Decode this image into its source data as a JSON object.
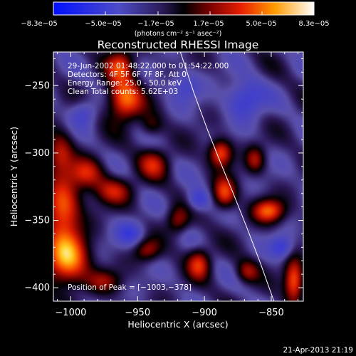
{
  "chart_data": {
    "type": "heatmap",
    "title": "Reconstructed RHESSI Image",
    "xlabel": "Heliocentric X (arcsec)",
    "ylabel": "Heliocentric Y (arcsec)",
    "xlim": [
      -1013,
      -826
    ],
    "ylim": [
      -410,
      -225
    ],
    "x_ticks": [
      -1000,
      -950,
      -900,
      -850
    ],
    "x_tick_labels": [
      "−1000",
      "−950",
      "−900",
      "−850"
    ],
    "y_ticks": [
      -250,
      -300,
      -350,
      -400
    ],
    "y_tick_labels": [
      "−250",
      "−300",
      "−350",
      "−400"
    ],
    "colorbar": {
      "min": -8.3e-05,
      "max": 8.3e-05,
      "tick_labels": [
        "−8.3e−05",
        "−5.0e−05",
        "−1.7e−05",
        "1.7e−05",
        "5.0e−05",
        "8.3e−05"
      ],
      "unit_label": "(photons cm⁻² s⁻¹ asec⁻²)"
    },
    "annotations": [
      "29-Jun-2002 01:48:22.000 to 01:54:22.000",
      "Detectors: 4F 5F 6F 7F 8F, Att 0",
      "Energy Range: 25.0 - 50.0 keV",
      "Clean    Total counts: 5.62E+03"
    ],
    "peak_label": "Position of Peak = [−1003,−378]",
    "peak_position": [
      -1003,
      -378
    ],
    "limb_curve": {
      "x": [
        -918,
        -908,
        -898,
        -888,
        -878,
        -868,
        -858,
        -848
      ],
      "y": [
        -225,
        -255,
        -282,
        -307,
        -331,
        -356,
        -382,
        -410
      ]
    },
    "sources": [
      {
        "x": -1003,
        "y": -378,
        "amp": 1.0,
        "sx": 11,
        "sy": 14
      },
      {
        "x": -1006,
        "y": -340,
        "amp": 0.8,
        "sx": 9,
        "sy": 14
      },
      {
        "x": -1008,
        "y": -300,
        "amp": 0.55,
        "sx": 7,
        "sy": 11
      },
      {
        "x": -988,
        "y": -315,
        "amp": 0.55,
        "sx": 9,
        "sy": 8
      },
      {
        "x": -960,
        "y": -260,
        "amp": 0.85,
        "sx": 9,
        "sy": 11
      },
      {
        "x": -963,
        "y": -235,
        "amp": 0.6,
        "sx": 7,
        "sy": 8
      },
      {
        "x": -968,
        "y": -328,
        "amp": 0.5,
        "sx": 10,
        "sy": 7
      },
      {
        "x": -938,
        "y": -308,
        "amp": 0.5,
        "sx": 8,
        "sy": 8
      },
      {
        "x": -920,
        "y": -350,
        "amp": 0.45,
        "sx": 6,
        "sy": 7
      },
      {
        "x": -904,
        "y": -382,
        "amp": 0.6,
        "sx": 6,
        "sy": 8
      },
      {
        "x": -943,
        "y": -372,
        "amp": 0.45,
        "sx": 7,
        "sy": 6
      },
      {
        "x": -885,
        "y": -330,
        "amp": 0.7,
        "sx": 6,
        "sy": 8
      },
      {
        "x": -888,
        "y": -300,
        "amp": 0.75,
        "sx": 6,
        "sy": 7
      },
      {
        "x": -862,
        "y": -305,
        "amp": 0.45,
        "sx": 5,
        "sy": 7
      },
      {
        "x": -852,
        "y": -343,
        "amp": 0.75,
        "sx": 8,
        "sy": 6
      },
      {
        "x": -833,
        "y": -395,
        "amp": 0.8,
        "sx": 5,
        "sy": 11
      },
      {
        "x": -868,
        "y": -388,
        "amp": 0.45,
        "sx": 6,
        "sy": 6
      },
      {
        "x": -975,
        "y": -395,
        "amp": 0.35,
        "sx": 9,
        "sy": 6
      },
      {
        "x": -940,
        "y": -280,
        "amp": 0.3,
        "sx": 6,
        "sy": 6
      },
      {
        "x": -870,
        "y": -260,
        "amp": -0.45,
        "sx": 10,
        "sy": 10
      },
      {
        "x": -955,
        "y": -360,
        "amp": -0.35,
        "sx": 8,
        "sy": 7
      },
      {
        "x": -990,
        "y": -270,
        "amp": -0.3,
        "sx": 7,
        "sy": 7
      },
      {
        "x": -905,
        "y": -335,
        "amp": -0.4,
        "sx": 6,
        "sy": 6
      },
      {
        "x": -842,
        "y": -370,
        "amp": -0.4,
        "sx": 6,
        "sy": 6
      },
      {
        "x": -915,
        "y": -250,
        "amp": -0.3,
        "sx": 8,
        "sy": 8
      }
    ]
  },
  "footer": {
    "timestamp": "21-Apr-2013 21:19"
  }
}
